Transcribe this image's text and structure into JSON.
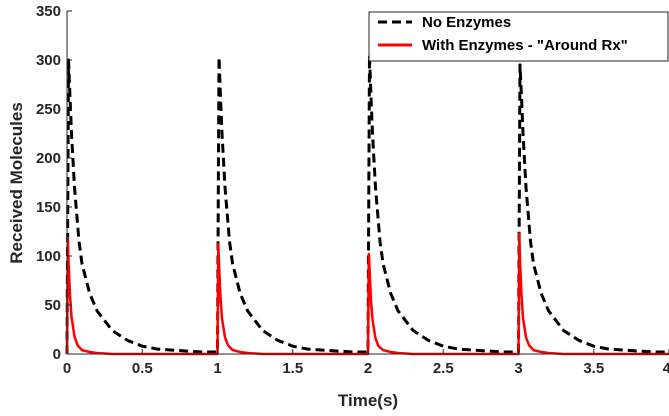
{
  "chart_data": {
    "type": "line",
    "xlabel": "Time(s)",
    "ylabel": "Received Molecules",
    "xlim": [
      0,
      4
    ],
    "ylim": [
      0,
      350
    ],
    "xticks": [
      0,
      0.5,
      1,
      1.5,
      2,
      2.5,
      3,
      3.5,
      4
    ],
    "xtick_labels": [
      "0",
      "0.5",
      "1",
      "1.5",
      "2",
      "2.5",
      "3",
      "3.5",
      "4"
    ],
    "yticks": [
      0,
      50,
      100,
      150,
      200,
      250,
      300,
      350
    ],
    "ytick_labels": [
      "0",
      "50",
      "100",
      "150",
      "200",
      "250",
      "300",
      "350"
    ],
    "grid": false,
    "legend_position": "top-right",
    "series": [
      {
        "name": "No Enzymes",
        "color": "#000000",
        "style": "dashed",
        "x": [
          0,
          0.01,
          0.02,
          0.03,
          0.05,
          0.08,
          0.1,
          0.15,
          0.2,
          0.3,
          0.4,
          0.5,
          0.6,
          0.7,
          0.8,
          0.9,
          0.99,
          1.0,
          1.01,
          1.02,
          1.03,
          1.05,
          1.08,
          1.1,
          1.15,
          1.2,
          1.3,
          1.4,
          1.5,
          1.6,
          1.7,
          1.8,
          1.9,
          1.99,
          2.0,
          2.01,
          2.02,
          2.03,
          2.05,
          2.08,
          2.1,
          2.15,
          2.2,
          2.3,
          2.4,
          2.5,
          2.6,
          2.7,
          2.8,
          2.9,
          2.99,
          3.0,
          3.01,
          3.02,
          3.03,
          3.05,
          3.08,
          3.1,
          3.15,
          3.2,
          3.3,
          3.4,
          3.5,
          3.6,
          3.7,
          3.8,
          3.9,
          4.0
        ],
        "y": [
          0,
          300,
          262,
          225,
          170,
          115,
          92,
          62,
          44,
          24,
          14,
          8,
          5,
          4,
          3,
          2,
          2,
          2,
          303,
          262,
          225,
          170,
          115,
          92,
          62,
          44,
          24,
          14,
          8,
          5,
          4,
          3,
          2,
          2,
          2,
          305,
          262,
          225,
          170,
          115,
          92,
          62,
          44,
          24,
          14,
          8,
          5,
          4,
          3,
          2,
          2,
          2,
          295,
          262,
          225,
          170,
          115,
          92,
          62,
          44,
          24,
          14,
          8,
          5,
          4,
          3,
          2,
          2
        ]
      },
      {
        "name": "With Enzymes - \"Around Rx\"",
        "color": "#ff0000",
        "style": "solid",
        "x": [
          0,
          0.005,
          0.01,
          0.02,
          0.03,
          0.05,
          0.07,
          0.1,
          0.15,
          0.2,
          0.3,
          0.5,
          0.7,
          0.9,
          0.995,
          1.0,
          1.005,
          1.01,
          1.02,
          1.03,
          1.05,
          1.07,
          1.1,
          1.15,
          1.2,
          1.3,
          1.5,
          1.7,
          1.9,
          1.995,
          2.0,
          2.005,
          2.01,
          2.02,
          2.03,
          2.05,
          2.07,
          2.1,
          2.15,
          2.2,
          2.3,
          2.5,
          2.7,
          2.9,
          2.995,
          3.0,
          3.005,
          3.01,
          3.02,
          3.03,
          3.05,
          3.07,
          3.1,
          3.15,
          3.2,
          3.3,
          3.5,
          3.7,
          3.9,
          4.0
        ],
        "y": [
          0,
          118,
          95,
          60,
          38,
          18,
          9,
          4,
          2,
          1,
          0,
          0,
          0,
          0,
          0,
          0,
          112,
          92,
          58,
          36,
          17,
          9,
          4,
          2,
          1,
          0,
          0,
          0,
          0,
          0,
          0,
          102,
          88,
          55,
          35,
          16,
          8,
          4,
          2,
          1,
          0,
          0,
          0,
          0,
          0,
          0,
          123,
          95,
          60,
          37,
          17,
          9,
          4,
          2,
          1,
          0,
          0,
          0,
          0,
          0
        ]
      }
    ]
  }
}
